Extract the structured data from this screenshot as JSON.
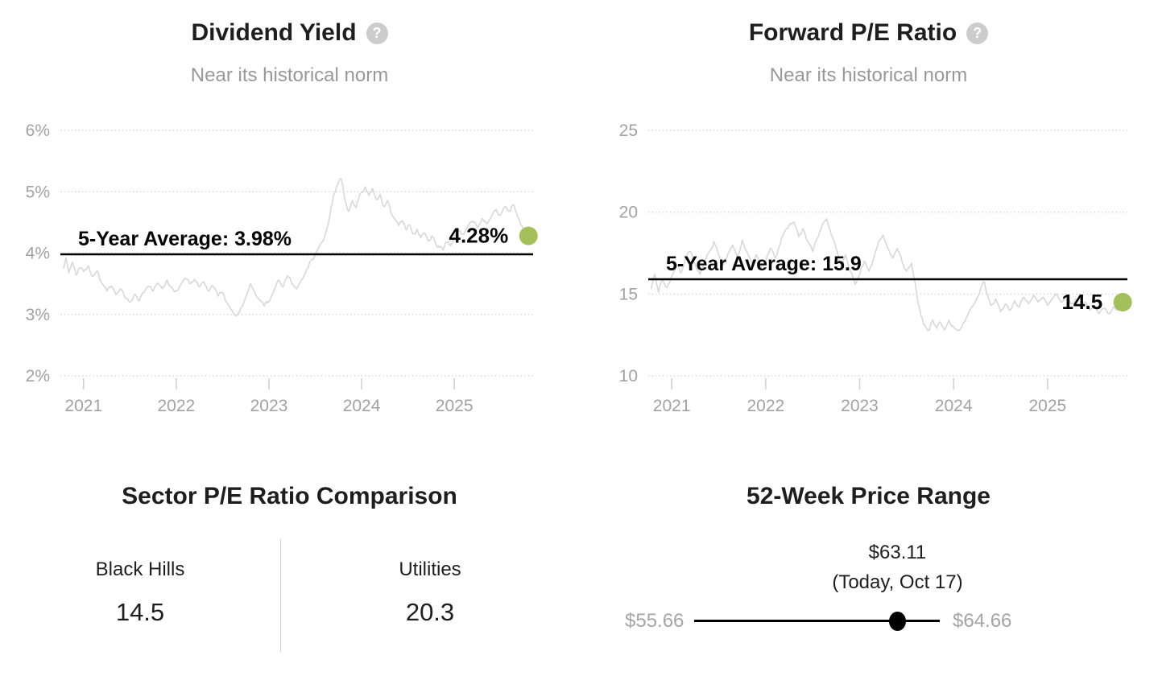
{
  "colors": {
    "accent_green": "#a3c05c",
    "series_line": "#d8d8d8",
    "grid_line": "#d8d8d8",
    "tick_mark": "#cfcfcf",
    "average_line": "#000000",
    "axis_text": "#a2a2a2",
    "muted_text": "#989898",
    "title_text": "#1e1e1e",
    "help_icon_bg": "#cccccc",
    "divider": "#cccccc",
    "marker_black": "#000000"
  },
  "icons": {
    "help_glyph": "?"
  },
  "chart_data": [
    {
      "id": "dividend_yield",
      "type": "line",
      "title": "Dividend Yield",
      "subtitle": "Near its historical norm",
      "legend_position": "none",
      "grid": "dotted-horizontal",
      "ylim": [
        2,
        6
      ],
      "y_ticks": [
        "6%",
        "5%",
        "4%",
        "3%",
        "2%"
      ],
      "y_tick_values": [
        6,
        5,
        4,
        3,
        2
      ],
      "xlim": [
        2020.75,
        2025.85
      ],
      "x_ticks": [
        2021,
        2022,
        2023,
        2024,
        2025
      ],
      "average_label": "5-Year Average: 3.98%",
      "average_value": 3.98,
      "current_label": "4.28%",
      "current_value": 4.28,
      "series": [
        {
          "name": "Dividend Yield %",
          "points": [
            [
              2020.78,
              3.75
            ],
            [
              2020.81,
              3.92
            ],
            [
              2020.84,
              3.68
            ],
            [
              2020.88,
              3.85
            ],
            [
              2020.92,
              3.64
            ],
            [
              2020.96,
              3.76
            ],
            [
              2021.0,
              3.7
            ],
            [
              2021.05,
              3.79
            ],
            [
              2021.1,
              3.62
            ],
            [
              2021.15,
              3.71
            ],
            [
              2021.2,
              3.5
            ],
            [
              2021.25,
              3.38
            ],
            [
              2021.3,
              3.46
            ],
            [
              2021.35,
              3.32
            ],
            [
              2021.4,
              3.42
            ],
            [
              2021.45,
              3.27
            ],
            [
              2021.5,
              3.2
            ],
            [
              2021.55,
              3.33
            ],
            [
              2021.6,
              3.22
            ],
            [
              2021.65,
              3.36
            ],
            [
              2021.7,
              3.46
            ],
            [
              2021.75,
              3.38
            ],
            [
              2021.8,
              3.51
            ],
            [
              2021.85,
              3.42
            ],
            [
              2021.9,
              3.56
            ],
            [
              2021.95,
              3.45
            ],
            [
              2022.0,
              3.38
            ],
            [
              2022.05,
              3.49
            ],
            [
              2022.1,
              3.59
            ],
            [
              2022.15,
              3.5
            ],
            [
              2022.2,
              3.57
            ],
            [
              2022.25,
              3.45
            ],
            [
              2022.3,
              3.53
            ],
            [
              2022.35,
              3.38
            ],
            [
              2022.4,
              3.46
            ],
            [
              2022.45,
              3.3
            ],
            [
              2022.5,
              3.36
            ],
            [
              2022.55,
              3.19
            ],
            [
              2022.6,
              3.07
            ],
            [
              2022.65,
              2.98
            ],
            [
              2022.7,
              3.12
            ],
            [
              2022.75,
              3.28
            ],
            [
              2022.8,
              3.5
            ],
            [
              2022.85,
              3.36
            ],
            [
              2022.9,
              3.24
            ],
            [
              2022.95,
              3.14
            ],
            [
              2023.0,
              3.21
            ],
            [
              2023.05,
              3.36
            ],
            [
              2023.1,
              3.56
            ],
            [
              2023.15,
              3.45
            ],
            [
              2023.2,
              3.63
            ],
            [
              2023.25,
              3.5
            ],
            [
              2023.3,
              3.42
            ],
            [
              2023.35,
              3.56
            ],
            [
              2023.4,
              3.71
            ],
            [
              2023.45,
              3.88
            ],
            [
              2023.5,
              3.97
            ],
            [
              2023.55,
              4.12
            ],
            [
              2023.6,
              4.26
            ],
            [
              2023.65,
              4.56
            ],
            [
              2023.7,
              4.96
            ],
            [
              2023.74,
              5.12
            ],
            [
              2023.78,
              5.21
            ],
            [
              2023.82,
              4.86
            ],
            [
              2023.86,
              4.68
            ],
            [
              2023.9,
              4.86
            ],
            [
              2023.94,
              4.74
            ],
            [
              2023.98,
              4.96
            ],
            [
              2024.04,
              5.08
            ],
            [
              2024.08,
              4.94
            ],
            [
              2024.12,
              5.05
            ],
            [
              2024.16,
              4.87
            ],
            [
              2024.2,
              4.96
            ],
            [
              2024.24,
              4.76
            ],
            [
              2024.28,
              4.86
            ],
            [
              2024.32,
              4.64
            ],
            [
              2024.36,
              4.55
            ],
            [
              2024.4,
              4.45
            ],
            [
              2024.44,
              4.53
            ],
            [
              2024.48,
              4.38
            ],
            [
              2024.52,
              4.46
            ],
            [
              2024.56,
              4.31
            ],
            [
              2024.6,
              4.39
            ],
            [
              2024.64,
              4.25
            ],
            [
              2024.68,
              4.33
            ],
            [
              2024.72,
              4.2
            ],
            [
              2024.76,
              4.28
            ],
            [
              2024.8,
              4.15
            ],
            [
              2024.84,
              4.1
            ],
            [
              2024.88,
              4.05
            ],
            [
              2024.92,
              4.18
            ],
            [
              2024.96,
              4.12
            ],
            [
              2025.0,
              4.26
            ],
            [
              2025.05,
              4.38
            ],
            [
              2025.1,
              4.3
            ],
            [
              2025.15,
              4.46
            ],
            [
              2025.2,
              4.52
            ],
            [
              2025.25,
              4.42
            ],
            [
              2025.3,
              4.56
            ],
            [
              2025.35,
              4.48
            ],
            [
              2025.4,
              4.6
            ],
            [
              2025.45,
              4.71
            ],
            [
              2025.5,
              4.62
            ],
            [
              2025.55,
              4.76
            ],
            [
              2025.6,
              4.68
            ],
            [
              2025.64,
              4.79
            ],
            [
              2025.68,
              4.6
            ],
            [
              2025.72,
              4.45
            ],
            [
              2025.76,
              4.36
            ],
            [
              2025.8,
              4.28
            ]
          ]
        }
      ]
    },
    {
      "id": "forward_pe",
      "type": "line",
      "title": "Forward P/E Ratio",
      "subtitle": "Near its historical norm",
      "legend_position": "none",
      "grid": "dotted-horizontal",
      "ylim": [
        10,
        25
      ],
      "y_ticks": [
        "25",
        "20",
        "15",
        "10"
      ],
      "y_tick_values": [
        25,
        20,
        15,
        10
      ],
      "xlim": [
        2020.75,
        2025.85
      ],
      "x_ticks": [
        2021,
        2022,
        2023,
        2024,
        2025
      ],
      "average_label": "5-Year Average: 15.9",
      "average_value": 15.9,
      "current_label": "14.5",
      "current_value": 14.5,
      "series": [
        {
          "name": "Forward P/E",
          "points": [
            [
              2020.78,
              15.3
            ],
            [
              2020.82,
              16.2
            ],
            [
              2020.86,
              15.1
            ],
            [
              2020.9,
              15.9
            ],
            [
              2020.95,
              15.4
            ],
            [
              2021.0,
              16.1
            ],
            [
              2021.05,
              16.8
            ],
            [
              2021.1,
              16.3
            ],
            [
              2021.15,
              17.3
            ],
            [
              2021.2,
              17.6
            ],
            [
              2021.25,
              16.8
            ],
            [
              2021.3,
              16.2
            ],
            [
              2021.35,
              17.0
            ],
            [
              2021.4,
              17.6
            ],
            [
              2021.45,
              18.2
            ],
            [
              2021.5,
              17.4
            ],
            [
              2021.55,
              16.8
            ],
            [
              2021.6,
              17.5
            ],
            [
              2021.65,
              18.0
            ],
            [
              2021.7,
              17.3
            ],
            [
              2021.75,
              18.3
            ],
            [
              2021.8,
              17.6
            ],
            [
              2021.85,
              16.9
            ],
            [
              2021.9,
              17.4
            ],
            [
              2021.95,
              16.6
            ],
            [
              2022.0,
              17.0
            ],
            [
              2022.05,
              17.8
            ],
            [
              2022.1,
              17.2
            ],
            [
              2022.15,
              18.0
            ],
            [
              2022.2,
              18.8
            ],
            [
              2022.25,
              19.2
            ],
            [
              2022.3,
              19.4
            ],
            [
              2022.35,
              18.5
            ],
            [
              2022.4,
              19.0
            ],
            [
              2022.45,
              18.2
            ],
            [
              2022.5,
              17.6
            ],
            [
              2022.55,
              18.4
            ],
            [
              2022.6,
              19.2
            ],
            [
              2022.65,
              19.6
            ],
            [
              2022.7,
              18.6
            ],
            [
              2022.75,
              17.8
            ],
            [
              2022.8,
              16.8
            ],
            [
              2022.85,
              17.4
            ],
            [
              2022.9,
              16.4
            ],
            [
              2022.95,
              15.6
            ],
            [
              2023.0,
              16.2
            ],
            [
              2023.05,
              17.0
            ],
            [
              2023.1,
              16.4
            ],
            [
              2023.15,
              17.2
            ],
            [
              2023.2,
              18.2
            ],
            [
              2023.25,
              18.6
            ],
            [
              2023.3,
              17.8
            ],
            [
              2023.35,
              17.2
            ],
            [
              2023.4,
              17.8
            ],
            [
              2023.45,
              17.0
            ],
            [
              2023.5,
              16.4
            ],
            [
              2023.55,
              16.9
            ],
            [
              2023.58,
              16.0
            ],
            [
              2023.62,
              14.6
            ],
            [
              2023.66,
              13.6
            ],
            [
              2023.7,
              13.0
            ],
            [
              2023.74,
              12.8
            ],
            [
              2023.78,
              13.4
            ],
            [
              2023.82,
              12.9
            ],
            [
              2023.86,
              13.3
            ],
            [
              2023.9,
              12.8
            ],
            [
              2023.95,
              13.4
            ],
            [
              2024.0,
              13.0
            ],
            [
              2024.05,
              12.8
            ],
            [
              2024.1,
              13.2
            ],
            [
              2024.15,
              13.7
            ],
            [
              2024.2,
              14.2
            ],
            [
              2024.25,
              14.8
            ],
            [
              2024.3,
              15.5
            ],
            [
              2024.33,
              15.7
            ],
            [
              2024.36,
              15.0
            ],
            [
              2024.4,
              14.3
            ],
            [
              2024.45,
              14.7
            ],
            [
              2024.5,
              13.9
            ],
            [
              2024.55,
              14.4
            ],
            [
              2024.6,
              14.0
            ],
            [
              2024.65,
              14.6
            ],
            [
              2024.7,
              14.2
            ],
            [
              2024.75,
              14.8
            ],
            [
              2024.8,
              14.4
            ],
            [
              2024.85,
              14.9
            ],
            [
              2024.9,
              14.5
            ],
            [
              2024.95,
              14.8
            ],
            [
              2025.0,
              14.3
            ],
            [
              2025.05,
              14.7
            ],
            [
              2025.1,
              15.0
            ],
            [
              2025.15,
              14.5
            ],
            [
              2025.2,
              14.9
            ],
            [
              2025.25,
              14.4
            ],
            [
              2025.3,
              14.7
            ],
            [
              2025.35,
              14.2
            ],
            [
              2025.4,
              14.5
            ],
            [
              2025.45,
              14.0
            ],
            [
              2025.5,
              14.3
            ],
            [
              2025.55,
              13.8
            ],
            [
              2025.6,
              14.1
            ],
            [
              2025.65,
              13.8
            ],
            [
              2025.7,
              14.2
            ],
            [
              2025.75,
              14.0
            ],
            [
              2025.8,
              14.5
            ]
          ]
        }
      ]
    },
    {
      "id": "sector_pe_comparison",
      "type": "table",
      "title": "Sector P/E Ratio Comparison",
      "columns": [
        "Black Hills",
        "Utilities"
      ],
      "values": [
        "14.5",
        "20.3"
      ]
    },
    {
      "id": "price_range_52w",
      "type": "range",
      "title": "52-Week Price Range",
      "low": 55.66,
      "high": 64.66,
      "current": 63.11,
      "low_label": "$55.66",
      "high_label": "$64.66",
      "current_label": "$63.11",
      "current_note": "(Today, Oct 17)"
    }
  ]
}
